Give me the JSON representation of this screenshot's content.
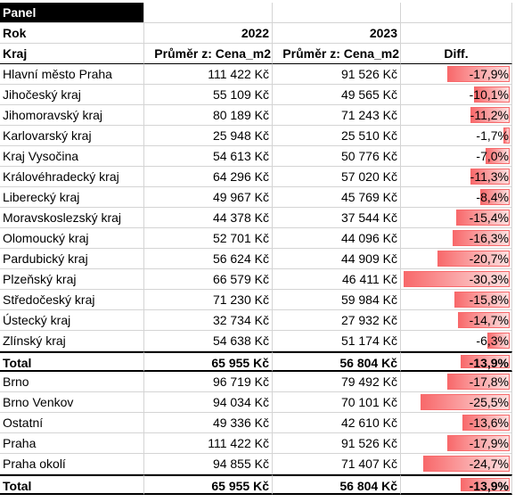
{
  "panel": "Panel",
  "rok_label": "Rok",
  "years": [
    "2022",
    "2023"
  ],
  "header": {
    "kraj": "Kraj",
    "col1": "Průměr z: Cena_m2",
    "col2": "Průměr z: Cena_m2",
    "diff": "Diff."
  },
  "sections": [
    {
      "rows": [
        [
          "Hlavní město Praha",
          "111 422 Kč",
          "91 526 Kč",
          {
            "value": -17.9,
            "label": "-17,9%"
          }
        ],
        [
          "Jihočeský kraj",
          "55 109 Kč",
          "49 565 Kč",
          {
            "value": -10.1,
            "label": "-10,1%"
          }
        ],
        [
          "Jihomoravský kraj",
          "80 189 Kč",
          "71 243 Kč",
          {
            "value": -11.2,
            "label": "-11,2%"
          }
        ],
        [
          "Karlovarský kraj",
          "25 948 Kč",
          "25 510 Kč",
          {
            "value": -1.7,
            "label": "-1,7%"
          }
        ],
        [
          "Kraj Vysočina",
          "54 613 Kč",
          "50 776 Kč",
          {
            "value": -7.0,
            "label": "-7,0%"
          }
        ],
        [
          "Královéhradecký kraj",
          "64 296 Kč",
          "57 020 Kč",
          {
            "value": -11.3,
            "label": "-11,3%"
          }
        ],
        [
          "Liberecký kraj",
          "49 967 Kč",
          "45 769 Kč",
          {
            "value": -8.4,
            "label": "-8,4%"
          }
        ],
        [
          "Moravskoslezský kraj",
          "44 378 Kč",
          "37 544 Kč",
          {
            "value": -15.4,
            "label": "-15,4%"
          }
        ],
        [
          "Olomoucký kraj",
          "52 701 Kč",
          "44 096 Kč",
          {
            "value": -16.3,
            "label": "-16,3%"
          }
        ],
        [
          "Pardubický kraj",
          "56 624 Kč",
          "44 909 Kč",
          {
            "value": -20.7,
            "label": "-20,7%"
          }
        ],
        [
          "Plzeňský kraj",
          "66 579 Kč",
          "46 411 Kč",
          {
            "value": -30.3,
            "label": "-30,3%"
          }
        ],
        [
          "Středočeský kraj",
          "71 230 Kč",
          "59 984 Kč",
          {
            "value": -15.8,
            "label": "-15,8%"
          }
        ],
        [
          "Ústecký kraj",
          "32 734 Kč",
          "27 932 Kč",
          {
            "value": -14.7,
            "label": "-14,7%"
          }
        ],
        [
          "Zlínský kraj",
          "54 638 Kč",
          "51 174 Kč",
          {
            "value": -6.3,
            "label": "-6,3%"
          }
        ]
      ],
      "total": [
        "Total",
        "65 955 Kč",
        "56 804 Kč",
        {
          "value": -13.9,
          "label": "-13,9%"
        }
      ]
    },
    {
      "rows": [
        [
          "Brno",
          "96 719 Kč",
          "79 492 Kč",
          {
            "value": -17.8,
            "label": "-17,8%"
          }
        ],
        [
          "Brno Venkov",
          "94 034 Kč",
          "70 101 Kč",
          {
            "value": -25.5,
            "label": "-25,5%"
          }
        ],
        [
          "Ostatní",
          "49 336 Kč",
          "42 610 Kč",
          {
            "value": -13.6,
            "label": "-13,6%"
          }
        ],
        [
          "Praha",
          "111 422 Kč",
          "91 526 Kč",
          {
            "value": -17.9,
            "label": "-17,9%"
          }
        ],
        [
          "Praha okolí",
          "94 855 Kč",
          "71 407 Kč",
          {
            "value": -24.7,
            "label": "-24,7%"
          }
        ]
      ],
      "total": [
        "Total",
        "65 955 Kč",
        "56 804 Kč",
        {
          "value": -13.9,
          "label": "-13,9%"
        }
      ]
    }
  ]
}
